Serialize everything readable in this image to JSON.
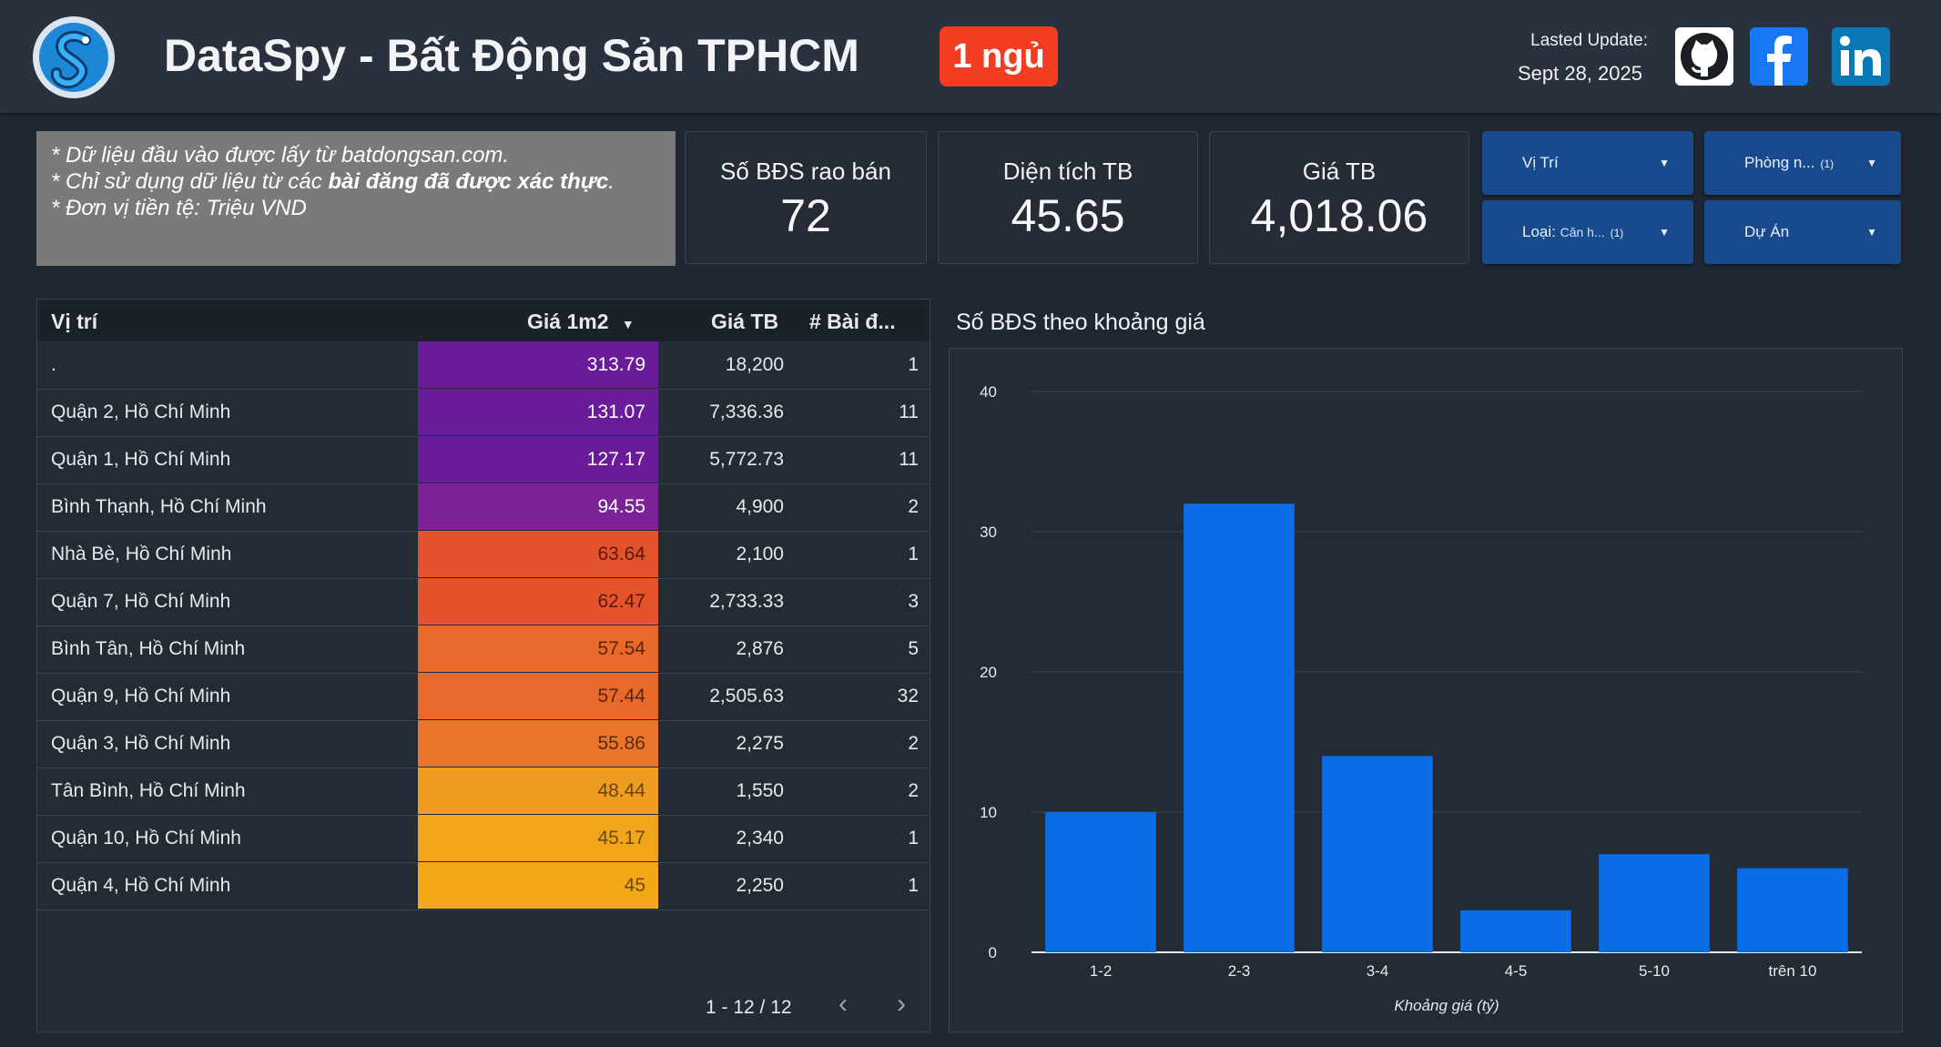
{
  "header": {
    "title": "DataSpy - Bất Động Sản TPHCM",
    "room_badge": "1 ngủ",
    "update_label": "Lasted Update:",
    "update_date": "Sept 28, 2025",
    "social": [
      "github-icon",
      "facebook-icon",
      "linkedin-icon"
    ]
  },
  "notes": [
    "* Dữ liệu đầu vào được lấy từ batdongsan.com.",
    "* Chỉ sử dụng dữ liệu từ các ",
    "bài đăng đã được xác thực",
    ".",
    "* Đơn vị tiền tệ: Triệu VND"
  ],
  "kpis": {
    "count": {
      "label": "Số BĐS rao bán",
      "value": "72"
    },
    "area": {
      "label": "Diện tích TB",
      "value": "45.65"
    },
    "price": {
      "label": "Giá TB",
      "value": "4,018.06"
    }
  },
  "filters": {
    "location": {
      "label": "Vị Trí"
    },
    "rooms": {
      "label": "Phòng n...",
      "count": "(1)"
    },
    "type": {
      "label": "Loại: ",
      "value": "Căn h...",
      "count": "(1)"
    },
    "project": {
      "label": "Dự Án"
    }
  },
  "table": {
    "headers": {
      "location": "Vị trí",
      "price_m2": "Giá 1m2",
      "avg_price": "Giá TB",
      "posts": "# Bài đ..."
    },
    "rows": [
      {
        "location": ".",
        "price_m2": "313.79",
        "avg_price": "18,200",
        "posts": "1",
        "color": "#6a1b9a",
        "text_color": "#ffffff"
      },
      {
        "location": "Quận 2, Hồ Chí Minh",
        "price_m2": "131.07",
        "avg_price": "7,336.36",
        "posts": "11",
        "color": "#6a1b9a",
        "text_color": "#ffffff"
      },
      {
        "location": "Quận 1, Hồ Chí Minh",
        "price_m2": "127.17",
        "avg_price": "5,772.73",
        "posts": "11",
        "color": "#6a1b9a",
        "text_color": "#ffffff"
      },
      {
        "location": "Bình Thạnh, Hồ Chí Minh",
        "price_m2": "94.55",
        "avg_price": "4,900",
        "posts": "2",
        "color": "#7b2396",
        "text_color": "#ffffff"
      },
      {
        "location": "Nhà Bè, Hồ Chí Minh",
        "price_m2": "63.64",
        "avg_price": "2,100",
        "posts": "1",
        "color": "#e4512d",
        "text_color": "#5a1a10"
      },
      {
        "location": "Quận 7, Hồ Chí Minh",
        "price_m2": "62.47",
        "avg_price": "2,733.33",
        "posts": "3",
        "color": "#e4532b",
        "text_color": "#5a1a10"
      },
      {
        "location": "Bình Tân, Hồ Chí Minh",
        "price_m2": "57.54",
        "avg_price": "2,876",
        "posts": "5",
        "color": "#e8692a",
        "text_color": "#5a2510"
      },
      {
        "location": "Quận 9, Hồ Chí Minh",
        "price_m2": "57.44",
        "avg_price": "2,505.63",
        "posts": "32",
        "color": "#e8692a",
        "text_color": "#5a2510"
      },
      {
        "location": "Quận 3, Hồ Chí Minh",
        "price_m2": "55.86",
        "avg_price": "2,275",
        "posts": "2",
        "color": "#e9752a",
        "text_color": "#5a2a10"
      },
      {
        "location": "Tân Bình, Hồ Chí Minh",
        "price_m2": "48.44",
        "avg_price": "1,550",
        "posts": "2",
        "color": "#ef9d1f",
        "text_color": "#6a4210"
      },
      {
        "location": "Quận 10, Hồ Chí Minh",
        "price_m2": "45.17",
        "avg_price": "2,340",
        "posts": "1",
        "color": "#f1a519",
        "text_color": "#6a4a10"
      },
      {
        "location": "Quận 4, Hồ Chí Minh",
        "price_m2": "45",
        "avg_price": "2,250",
        "posts": "1",
        "color": "#f2a817",
        "text_color": "#6a4a10"
      }
    ],
    "pager": "1 - 12 / 12"
  },
  "chart_data": {
    "type": "bar",
    "title": "Số BĐS theo khoảng giá",
    "categories": [
      "1-2",
      "2-3",
      "3-4",
      "4-5",
      "5-10",
      "trên 10"
    ],
    "values": [
      10,
      32,
      14,
      3,
      7,
      6
    ],
    "xlabel": "Khoảng giá (tỷ)",
    "ylabel": "",
    "ylim": [
      0,
      40
    ],
    "yticks": [
      0,
      10,
      20,
      30,
      40
    ],
    "bar_color": "#0a6de8"
  }
}
